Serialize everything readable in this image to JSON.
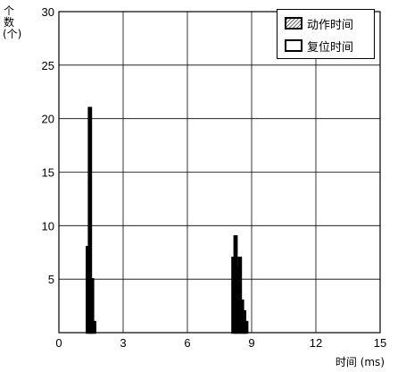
{
  "chart_data": {
    "type": "bar",
    "title": "",
    "xlabel": "时间 (ms)",
    "ylabel": "个数(个)",
    "xlim": [
      0,
      15
    ],
    "ylim": [
      0,
      30
    ],
    "xticks": [
      0,
      3,
      6,
      9,
      12,
      15
    ],
    "yticks": [
      5,
      10,
      15,
      20,
      25,
      30
    ],
    "grid": true,
    "legend_position": "top-right",
    "series": [
      {
        "name": "动作时间",
        "style": "hatched",
        "bins": [
          {
            "x0": 8.1,
            "x1": 8.2,
            "value": 7
          },
          {
            "x0": 8.2,
            "x1": 8.3,
            "value": 9
          },
          {
            "x0": 8.3,
            "x1": 8.4,
            "value": 6
          },
          {
            "x0": 8.4,
            "x1": 8.5,
            "value": 7
          },
          {
            "x0": 8.5,
            "x1": 8.6,
            "value": 3
          },
          {
            "x0": 8.6,
            "x1": 8.7,
            "value": 2
          },
          {
            "x0": 8.7,
            "x1": 8.8,
            "value": 1
          }
        ]
      },
      {
        "name": "复位时间",
        "style": "outline",
        "bins": [
          {
            "x0": 1.3,
            "x1": 1.4,
            "value": 8
          },
          {
            "x0": 1.4,
            "x1": 1.5,
            "value": 21
          },
          {
            "x0": 1.5,
            "x1": 1.6,
            "value": 5
          },
          {
            "x0": 1.6,
            "x1": 1.7,
            "value": 1
          }
        ]
      }
    ]
  }
}
